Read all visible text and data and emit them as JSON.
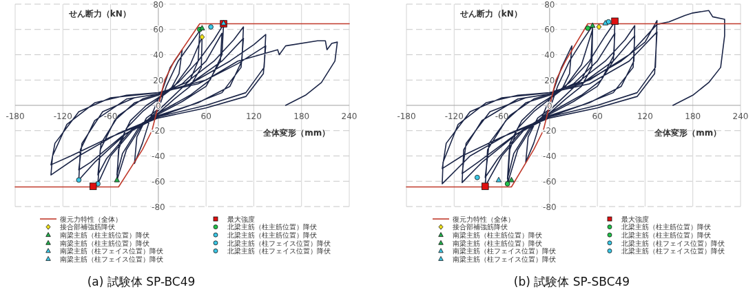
{
  "chart_data": [
    {
      "type": "line",
      "title": "(a)  試験体 SP-BC49",
      "xlabel": "全体変形（mm）",
      "ylabel": "せん断力（kN）",
      "xlim": [
        -180,
        240
      ],
      "ylim": [
        -80,
        80
      ],
      "xticks": [
        -180,
        -120,
        -60,
        60,
        120,
        180,
        240
      ],
      "yticks": [
        -80,
        -60,
        -40,
        -20,
        0,
        20,
        40,
        60,
        80
      ],
      "grid": true,
      "legend": "bottom",
      "series": [
        {
          "color": "#1b2547",
          "marker": "none",
          "x": [
            0,
            5,
            15,
            30,
            26,
            15,
            0,
            -10,
            -20,
            -30,
            -27,
            -15,
            0,
            10,
            25,
            40,
            52,
            50,
            40,
            20,
            0,
            -20,
            -40,
            -52,
            -50,
            -40,
            -20,
            0,
            20,
            40,
            55,
            54,
            40,
            20,
            0,
            -25,
            -45,
            -52,
            -49,
            -35,
            -15,
            0,
            25,
            50,
            70,
            82,
            80,
            65,
            40,
            0,
            -30,
            -60,
            -76,
            -73,
            -55,
            -30,
            0,
            30,
            60,
            80,
            78,
            60,
            30,
            0,
            -35,
            -65,
            -76,
            -72,
            -50,
            -20,
            0,
            35,
            70,
            95,
            107,
            105,
            90,
            50,
            0,
            -40,
            -80,
            -100,
            -98,
            -80,
            -40,
            0,
            40,
            80,
            107,
            104,
            80,
            40,
            0,
            -45,
            -85,
            -100,
            -96,
            -70,
            -30,
            0,
            40,
            90,
            120,
            135,
            133,
            110,
            60,
            0,
            -50,
            -100,
            -135,
            -133,
            -115,
            -80,
            -40,
            0,
            50,
            100,
            135,
            132,
            110,
            60,
            0,
            -60,
            -110,
            -135,
            -130,
            -100,
            -60,
            0,
            60,
            100,
            150,
            152,
            160,
            200,
            210,
            212,
            218,
            225,
            222,
            205,
            185,
            160
          ],
          "values": [
            0,
            12,
            30,
            44,
            25,
            12,
            5,
            -10,
            -30,
            -46,
            -25,
            -10,
            -3,
            15,
            35,
            48,
            59,
            35,
            20,
            8,
            -4,
            -15,
            -35,
            -59,
            -35,
            -18,
            -5,
            5,
            15,
            32,
            54,
            30,
            15,
            5,
            -6,
            -18,
            -38,
            -55,
            -30,
            -12,
            0,
            6,
            18,
            35,
            52,
            64,
            40,
            20,
            8,
            -6,
            -18,
            -40,
            -62,
            -35,
            -12,
            2,
            8,
            17,
            35,
            57,
            35,
            15,
            3,
            -7,
            -20,
            -42,
            -55,
            -30,
            -8,
            5,
            9,
            18,
            35,
            52,
            62,
            35,
            15,
            2,
            -8,
            -22,
            -45,
            -59,
            -35,
            -12,
            5,
            9,
            17,
            35,
            53,
            30,
            10,
            0,
            -9,
            -24,
            -45,
            -51,
            -30,
            -5,
            6,
            9,
            17,
            35,
            48,
            56,
            30,
            10,
            0,
            -9,
            -22,
            -40,
            -55,
            -40,
            -15,
            2,
            8,
            10,
            17,
            33,
            47,
            25,
            7,
            -2,
            -10,
            -25,
            -40,
            -47,
            -30,
            -5,
            6,
            10,
            20,
            35,
            44,
            40,
            47,
            51,
            51,
            44,
            49,
            50,
            35,
            18,
            8,
            0
          ]
        },
        {
          "name": "復元力特性（全体）",
          "color": "#c0392b",
          "marker": "none",
          "x": [
            -180,
            -50,
            -20,
            -8,
            0,
            8,
            20,
            52,
            240
          ],
          "values": [
            -64.5,
            -64.5,
            -35,
            -20,
            0,
            20,
            35,
            64.5,
            64.5
          ]
        },
        {
          "type": "scatter",
          "name": "接合部補強筋降伏",
          "color": "#f2e31a",
          "marker": "diamond",
          "x": [
            55
          ],
          "values": [
            54
          ]
        },
        {
          "type": "scatter",
          "name": "南梁主筋（柱主筋位置）降伏",
          "color": "#22b14c",
          "marker": "triangle",
          "x": [
            55
          ],
          "values": [
            61
          ]
        },
        {
          "type": "scatter",
          "name": "南梁主筋（柱主筋位置）降伏",
          "color": "#22b14c",
          "marker": "triangle",
          "x": [
            -52
          ],
          "values": [
            -59
          ]
        },
        {
          "type": "scatter",
          "name": "南梁主筋（柱フェイス位置）降伏",
          "color": "#3cc8e6",
          "marker": "triangle",
          "x": [
            82
          ],
          "values": [
            65
          ]
        },
        {
          "type": "scatter",
          "name": "南梁主筋（柱フェイス位置）降伏",
          "color": "#3cc8e6",
          "marker": "triangle"
        },
        {
          "type": "scatter",
          "name": "最大強度",
          "color": "#e01010",
          "marker": "square",
          "x": [
            82,
            -82
          ],
          "values": [
            64.5,
            -64
          ]
        },
        {
          "type": "scatter",
          "name": "北梁主筋（柱主筋位置）降伏",
          "color": "#22c34a",
          "marker": "circle",
          "x": [
            52
          ],
          "values": [
            60
          ]
        },
        {
          "type": "scatter",
          "name": "北梁主筋（柱主筋位置）降伏",
          "color": "#3cc8e6",
          "marker": "circle",
          "x": [
            66
          ],
          "values": [
            62
          ]
        },
        {
          "type": "scatter",
          "name": "北梁主筋（柱フェイス位置）降伏",
          "color": "#3cc8e6",
          "marker": "circle",
          "x": [
            -100
          ],
          "values": [
            -59
          ]
        },
        {
          "type": "scatter",
          "name": "北梁主筋（柱フェイス位置）降伏",
          "color": "#3cc8e6",
          "marker": "circle",
          "x": [
            -76
          ],
          "values": [
            -62
          ]
        }
      ]
    },
    {
      "type": "line",
      "title": "(b)  試験体 SP-SBC49",
      "xlabel": "全体変形（mm）",
      "ylabel": "せん断力（kN）",
      "xlim": [
        -180,
        240
      ],
      "ylim": [
        -80,
        80
      ],
      "xticks": [
        -180,
        -120,
        -60,
        60,
        120,
        180,
        240
      ],
      "yticks": [
        -80,
        -60,
        -40,
        -20,
        0,
        20,
        40,
        60,
        80
      ],
      "grid": true,
      "legend": "bottom",
      "series": [
        {
          "color": "#1b2547",
          "marker": "none",
          "x": [
            0,
            5,
            15,
            28,
            25,
            15,
            0,
            -10,
            -20,
            -30,
            -27,
            -15,
            0,
            10,
            25,
            40,
            54,
            52,
            40,
            20,
            0,
            -20,
            -40,
            -53,
            -50,
            -40,
            -20,
            0,
            20,
            40,
            54,
            53,
            40,
            20,
            0,
            -25,
            -45,
            -53,
            -50,
            -35,
            -15,
            0,
            25,
            50,
            70,
            82,
            81,
            65,
            40,
            0,
            -30,
            -60,
            -81,
            -78,
            -55,
            -30,
            0,
            30,
            60,
            82,
            80,
            60,
            30,
            0,
            -35,
            -65,
            -81,
            -76,
            -50,
            -20,
            0,
            35,
            70,
            95,
            107,
            106,
            90,
            50,
            0,
            -40,
            -85,
            -110,
            -108,
            -85,
            -40,
            0,
            40,
            80,
            107,
            105,
            80,
            40,
            0,
            -45,
            -90,
            -110,
            -105,
            -75,
            -30,
            0,
            40,
            90,
            120,
            135,
            133,
            110,
            60,
            0,
            -50,
            -100,
            -135,
            -134,
            -115,
            -80,
            -40,
            0,
            50,
            100,
            135,
            132,
            110,
            60,
            0,
            -60,
            -110,
            -135,
            -130,
            -100,
            -60,
            0,
            50,
            100,
            135,
            150,
            170,
            180,
            200,
            205,
            220,
            220,
            215,
            200,
            180,
            155
          ],
          "values": [
            0,
            12,
            30,
            47,
            25,
            12,
            5,
            -10,
            -30,
            -45,
            -25,
            -10,
            -3,
            15,
            35,
            50,
            63,
            35,
            20,
            8,
            -4,
            -15,
            -35,
            -62,
            -35,
            -18,
            -5,
            5,
            15,
            32,
            60,
            30,
            15,
            5,
            -6,
            -18,
            -38,
            -58,
            -30,
            -12,
            0,
            6,
            18,
            35,
            55,
            66,
            40,
            20,
            8,
            -6,
            -18,
            -40,
            -64,
            -35,
            -12,
            2,
            8,
            17,
            35,
            57,
            35,
            15,
            3,
            -7,
            -20,
            -42,
            -57,
            -30,
            -8,
            5,
            9,
            18,
            35,
            52,
            63,
            35,
            15,
            2,
            -8,
            -22,
            -45,
            -61,
            -35,
            -12,
            5,
            9,
            17,
            35,
            55,
            30,
            10,
            0,
            -9,
            -24,
            -45,
            -54,
            -30,
            -5,
            6,
            9,
            17,
            35,
            50,
            67,
            30,
            10,
            0,
            -9,
            -22,
            -40,
            -62,
            -45,
            -15,
            2,
            8,
            10,
            17,
            35,
            58,
            25,
            7,
            -2,
            -10,
            -25,
            -40,
            -50,
            -30,
            -5,
            6,
            10,
            20,
            40,
            64,
            66,
            71,
            73,
            75,
            70,
            68,
            55,
            30,
            18,
            8,
            0
          ]
        },
        {
          "name": "復元力特性（全体）",
          "color": "#c0392b",
          "marker": "none",
          "x": [
            -180,
            -48,
            -20,
            -8,
            0,
            8,
            20,
            48,
            240
          ],
          "values": [
            -64.5,
            -64.5,
            -35,
            -20,
            0,
            20,
            35,
            64.5,
            64.5
          ]
        },
        {
          "type": "scatter",
          "name": "接合部補強筋降伏",
          "color": "#f2e31a",
          "marker": "diamond",
          "x": [
            62
          ],
          "values": [
            62
          ]
        },
        {
          "type": "scatter",
          "name": "南梁主筋（柱主筋位置）降伏",
          "color": "#22b14c",
          "marker": "triangle",
          "x": [
            54
          ],
          "values": [
            63
          ]
        },
        {
          "type": "scatter",
          "name": "南梁主筋（柱主筋位置）降伏",
          "color": "#22b14c",
          "marker": "triangle",
          "x": [
            -48
          ],
          "values": [
            -59
          ]
        },
        {
          "type": "scatter",
          "name": "南梁主筋（柱フェイス位置）降伏",
          "color": "#3cc8e6",
          "marker": "triangle",
          "x": [
            -64
          ],
          "values": [
            -59
          ]
        },
        {
          "type": "scatter",
          "name": "南梁主筋（柱フェイス位置）降伏",
          "color": "#3cc8e6",
          "marker": "triangle",
          "x": [
            70
          ],
          "values": [
            65
          ]
        },
        {
          "type": "scatter",
          "name": "最大強度",
          "color": "#e01010",
          "marker": "square",
          "x": [
            82,
            -81
          ],
          "values": [
            66.5,
            -64
          ]
        },
        {
          "type": "scatter",
          "name": "北梁主筋（柱主筋位置）降伏",
          "color": "#22c34a",
          "marker": "circle",
          "x": [
            48
          ],
          "values": [
            61
          ]
        },
        {
          "type": "scatter",
          "name": "北梁主筋（柱主筋位置）降伏",
          "color": "#22c34a",
          "marker": "circle",
          "x": [
            -53
          ],
          "values": [
            -62
          ]
        },
        {
          "type": "scatter",
          "name": "北梁主筋（柱フェイス位置）降伏",
          "color": "#3cc8e6",
          "marker": "circle",
          "x": [
            -91
          ],
          "values": [
            -57
          ]
        },
        {
          "type": "scatter",
          "name": "北梁主筋（柱フェイス位置）降伏",
          "color": "#3cc8e6",
          "marker": "circle",
          "x": [
            74
          ],
          "values": [
            66
          ]
        }
      ]
    }
  ]
}
